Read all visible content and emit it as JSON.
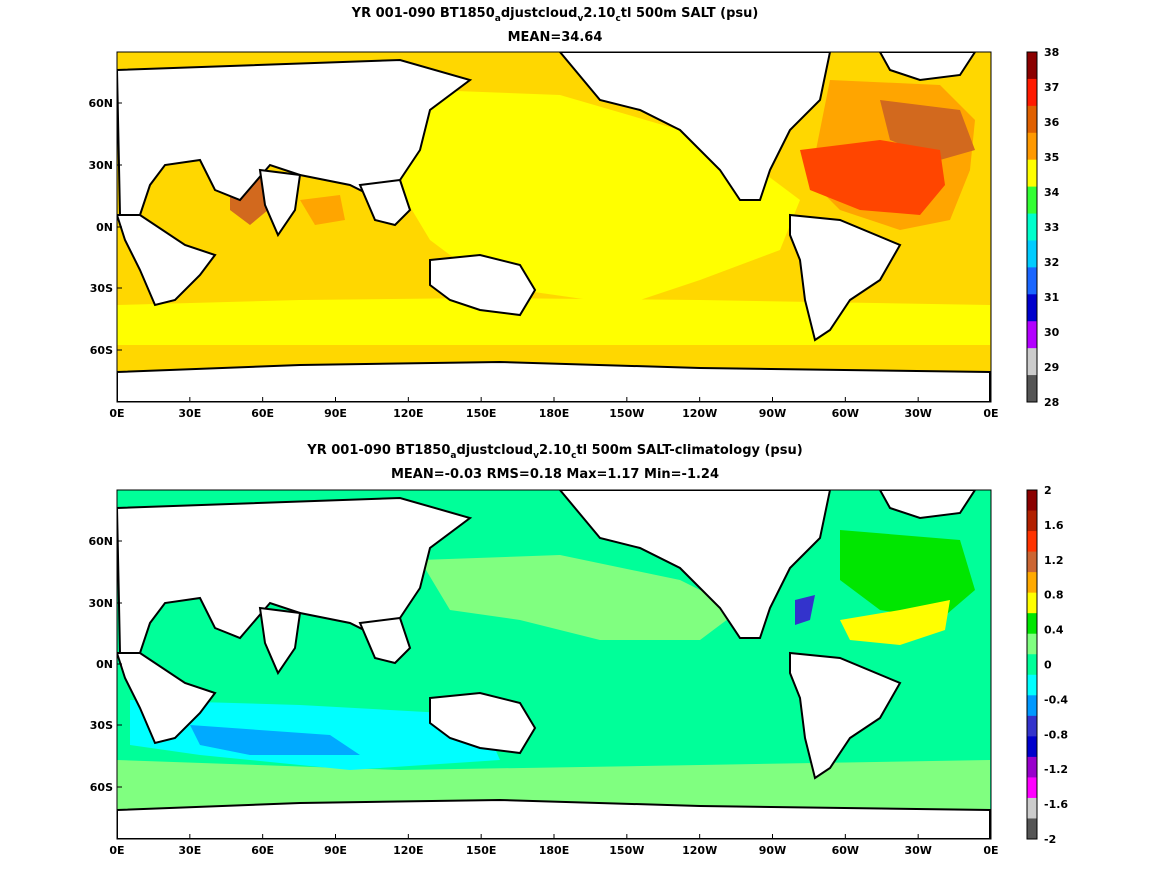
{
  "panels": [
    {
      "title_parts": [
        "YR 001-090 BT1850",
        "a",
        "djustcloud",
        "v",
        "2.10",
        "c",
        "tl 500m SALT (psu)"
      ],
      "stats": "MEAN=34.64",
      "colorbar_labels": [
        "38",
        "37",
        "36",
        "35",
        "34",
        "33",
        "32",
        "31",
        "30",
        "29",
        "28"
      ],
      "colorbar_colors": [
        "#8b0000",
        "#ff1a00",
        "#e06000",
        "#ff9900",
        "#ffff00",
        "#33ff33",
        "#00ffcc",
        "#00ccff",
        "#1a66ff",
        "#0000cc",
        "#b300ff",
        "#cccccc",
        "#555555"
      ]
    },
    {
      "title_parts": [
        "YR 001-090 BT1850",
        "a",
        "djustcloud",
        "v",
        "2.10",
        "c",
        "tl 500m SALT-climatology (psu)"
      ],
      "stats": "MEAN=-0.03   RMS=0.18   Max=1.17   Min=-1.24",
      "colorbar_labels": [
        "2",
        "1.6",
        "1.2",
        "0.8",
        "0.4",
        "0",
        "-0.4",
        "-0.8",
        "-1.2",
        "-1.6",
        "-2"
      ],
      "colorbar_colors": [
        "#8b0000",
        "#b22000",
        "#ff3300",
        "#cc6633",
        "#ffaa00",
        "#ffff00",
        "#00e600",
        "#80ff80",
        "#00ff99",
        "#00ffff",
        "#0099ff",
        "#3333cc",
        "#0000cc",
        "#9900cc",
        "#ff00ff",
        "#cccccc",
        "#555555"
      ]
    }
  ],
  "axes": {
    "x_ticks": [
      "0E",
      "30E",
      "60E",
      "90E",
      "120E",
      "150E",
      "180E",
      "150W",
      "120W",
      "90W",
      "60W",
      "30W",
      "0E"
    ],
    "y_ticks": [
      "60N",
      "30N",
      "0N",
      "30S",
      "60S"
    ]
  }
}
